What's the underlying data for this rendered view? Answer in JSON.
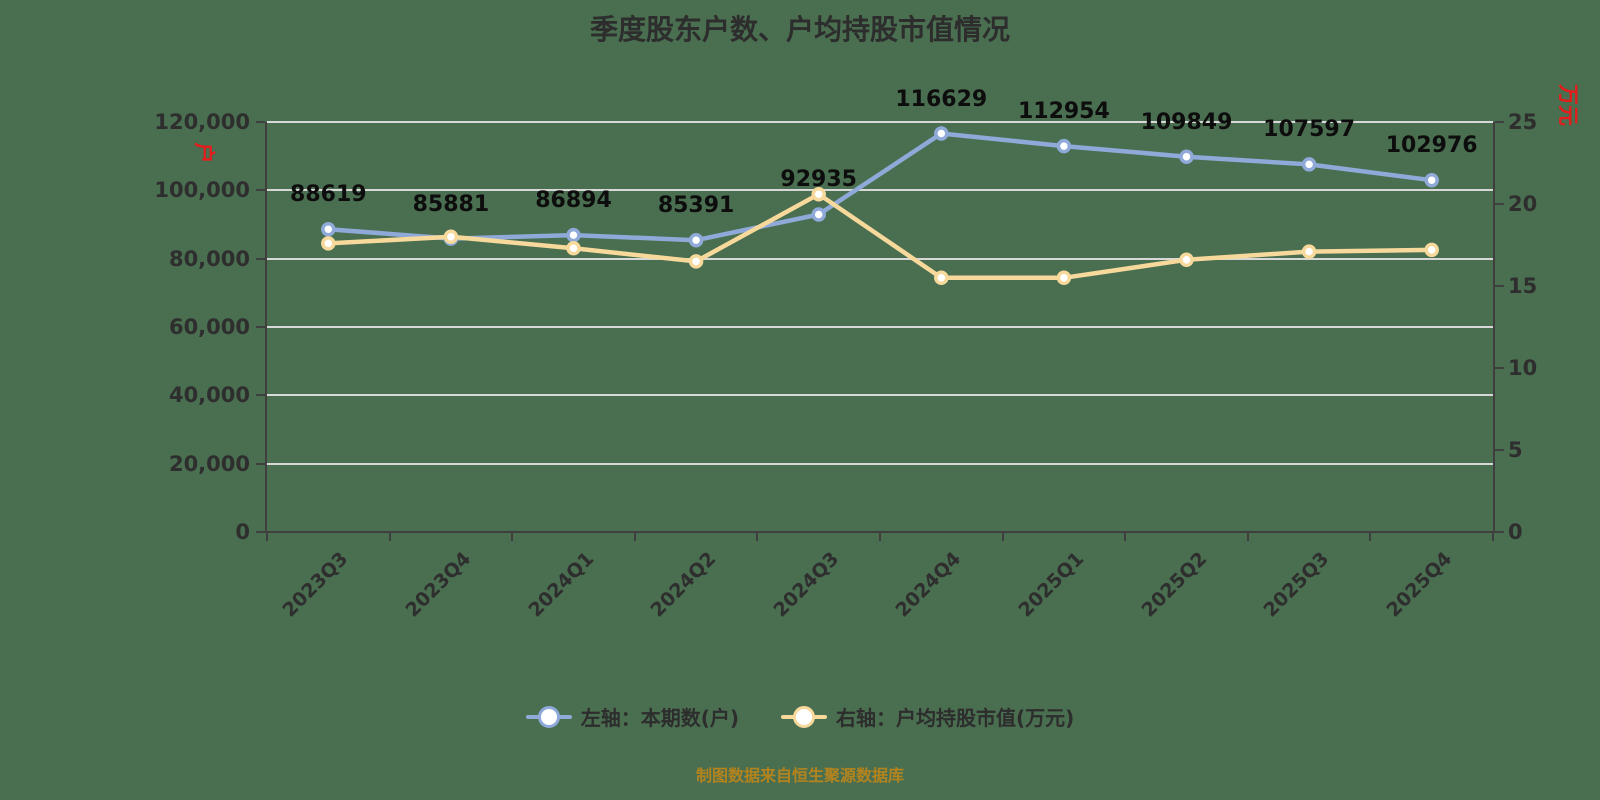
{
  "title": "季度股东户数、户均持股市值情况",
  "footer": "制图数据来自恒生聚源数据库",
  "colors": {
    "background": "#4A6E50",
    "grid": "#D8D8D8",
    "axis_line": "#3F3F3F",
    "tick_text": "#2E2E2E",
    "data_label": "#0D0D0D",
    "series_blue": "#8FAAD8",
    "series_yellow": "#F7D99C",
    "axis_name_red": "#E51C1C",
    "footer_gold": "#B3841E",
    "marker_fill": "#FFFFFF"
  },
  "left_axis": {
    "name": "户",
    "min": 0,
    "max": 120000,
    "tick_interval": 20000,
    "tick_labels": [
      "120,000",
      "100,000",
      "80,000",
      "60,000",
      "40,000",
      "20,000",
      "0"
    ]
  },
  "right_axis": {
    "name": "万元",
    "min": 0,
    "max": 25,
    "tick_interval": 5,
    "tick_labels": [
      "25",
      "20",
      "15",
      "10",
      "5",
      "0"
    ]
  },
  "legend": {
    "items": [
      {
        "label": "左轴：本期数(户)",
        "color": "#8FAAD8"
      },
      {
        "label": "右轴：户均持股市值(万元)",
        "color": "#F7D99C"
      }
    ]
  },
  "chart_data": {
    "type": "line",
    "categories": [
      "2023Q3",
      "2023Q4",
      "2024Q1",
      "2024Q2",
      "2024Q3",
      "2024Q4",
      "2025Q1",
      "2025Q2",
      "2025Q3",
      "2025Q4"
    ],
    "series": [
      {
        "name": "左轴：本期数(户)",
        "axis": "left",
        "color": "#8FAAD8",
        "values": [
          88619,
          85881,
          86894,
          85391,
          92935,
          116629,
          112954,
          109849,
          107597,
          102976
        ],
        "data_labels": true
      },
      {
        "name": "右轴：户均持股市值(万元)",
        "axis": "right",
        "color": "#F7D99C",
        "values": [
          17.6,
          18.0,
          17.3,
          16.5,
          20.6,
          15.5,
          15.5,
          16.6,
          17.1,
          17.2
        ],
        "data_labels": false
      }
    ],
    "title": "季度股东户数、户均持股市值情况",
    "xlabel": "",
    "ylabel_left": "户",
    "ylabel_right": "万元",
    "left_ylim": [
      0,
      120000
    ],
    "right_ylim": [
      0,
      25
    ],
    "grid": true,
    "legend_position": "bottom"
  }
}
